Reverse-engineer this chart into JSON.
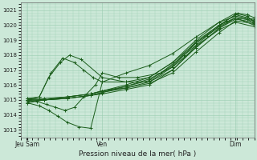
{
  "title": "",
  "xlabel": "Pression niveau de la mer( hPa )",
  "ylabel": "",
  "background_color": "#cce8d8",
  "plot_bg_color": "#cce8d8",
  "grid_color": "#99ccb0",
  "line_color": "#1a5c1a",
  "marker_color": "#1a5c1a",
  "ylim": [
    1012.5,
    1021.5
  ],
  "xlim": [
    0,
    100
  ],
  "yticks": [
    1013,
    1014,
    1015,
    1016,
    1017,
    1018,
    1019,
    1020,
    1021
  ],
  "xtick_positions": [
    3,
    35,
    92
  ],
  "xtick_labels": [
    "Jeu Sam",
    "Ven",
    "Dim"
  ],
  "lines": [
    {
      "x": [
        3,
        8,
        12,
        16,
        20,
        25,
        30,
        35,
        45,
        55,
        65,
        75,
        85,
        92,
        97,
        100
      ],
      "y": [
        1014.8,
        1014.6,
        1014.3,
        1013.9,
        1013.5,
        1013.2,
        1013.1,
        1016.2,
        1016.8,
        1017.3,
        1018.1,
        1019.2,
        1020.2,
        1020.8,
        1020.6,
        1020.2
      ]
    },
    {
      "x": [
        3,
        7,
        11,
        15,
        19,
        23,
        27,
        32,
        35,
        42,
        50,
        60,
        70,
        80,
        88,
        93,
        97,
        100
      ],
      "y": [
        1015.0,
        1014.9,
        1014.7,
        1014.5,
        1014.3,
        1014.5,
        1015.2,
        1016.0,
        1016.8,
        1016.5,
        1016.5,
        1016.8,
        1018.0,
        1019.3,
        1020.3,
        1020.8,
        1020.7,
        1020.5
      ]
    },
    {
      "x": [
        3,
        8,
        12,
        17,
        21,
        26,
        35,
        45,
        55,
        65,
        75,
        85,
        92,
        97,
        100
      ],
      "y": [
        1015.1,
        1015.2,
        1016.5,
        1017.5,
        1018.0,
        1017.7,
        1016.5,
        1016.2,
        1016.5,
        1017.5,
        1018.8,
        1020.0,
        1020.7,
        1020.5,
        1020.3
      ]
    },
    {
      "x": [
        3,
        8,
        13,
        18,
        23,
        27,
        31,
        35,
        45,
        55,
        65,
        75,
        85,
        92,
        97,
        100
      ],
      "y": [
        1015.0,
        1015.2,
        1016.8,
        1017.8,
        1017.5,
        1017.0,
        1016.5,
        1016.2,
        1016.2,
        1016.2,
        1017.2,
        1018.5,
        1019.8,
        1020.5,
        1020.4,
        1020.1
      ]
    },
    {
      "x": [
        3,
        10,
        20,
        30,
        35,
        45,
        55,
        65,
        75,
        85,
        92,
        100
      ],
      "y": [
        1014.9,
        1015.0,
        1015.2,
        1015.4,
        1015.6,
        1015.8,
        1016.2,
        1017.0,
        1018.5,
        1019.8,
        1020.4,
        1020.2
      ]
    },
    {
      "x": [
        3,
        10,
        20,
        30,
        35,
        45,
        55,
        65,
        75,
        85,
        92,
        100
      ],
      "y": [
        1015.0,
        1015.1,
        1015.2,
        1015.4,
        1015.6,
        1015.9,
        1016.4,
        1017.2,
        1018.8,
        1019.9,
        1020.5,
        1020.3
      ]
    },
    {
      "x": [
        3,
        10,
        20,
        30,
        35,
        45,
        55,
        65,
        75,
        85,
        92,
        100
      ],
      "y": [
        1014.8,
        1015.0,
        1015.1,
        1015.3,
        1015.5,
        1015.8,
        1016.1,
        1016.8,
        1018.2,
        1019.5,
        1020.3,
        1020.1
      ]
    },
    {
      "x": [
        3,
        10,
        20,
        30,
        35,
        45,
        55,
        65,
        75,
        85,
        92,
        100
      ],
      "y": [
        1015.1,
        1015.0,
        1015.2,
        1015.4,
        1015.6,
        1016.0,
        1016.5,
        1017.5,
        1019.0,
        1020.2,
        1020.6,
        1020.4
      ]
    },
    {
      "x": [
        3,
        10,
        20,
        30,
        35,
        45,
        55,
        65,
        75,
        85,
        92,
        100
      ],
      "y": [
        1015.0,
        1015.0,
        1015.1,
        1015.3,
        1015.5,
        1015.9,
        1016.3,
        1017.3,
        1018.9,
        1020.0,
        1020.5,
        1020.0
      ]
    },
    {
      "x": [
        3,
        10,
        20,
        30,
        35,
        45,
        55,
        65,
        75,
        85,
        92,
        100
      ],
      "y": [
        1014.9,
        1015.0,
        1015.1,
        1015.3,
        1015.4,
        1015.7,
        1016.0,
        1017.0,
        1018.6,
        1019.7,
        1020.2,
        1019.9
      ]
    }
  ]
}
